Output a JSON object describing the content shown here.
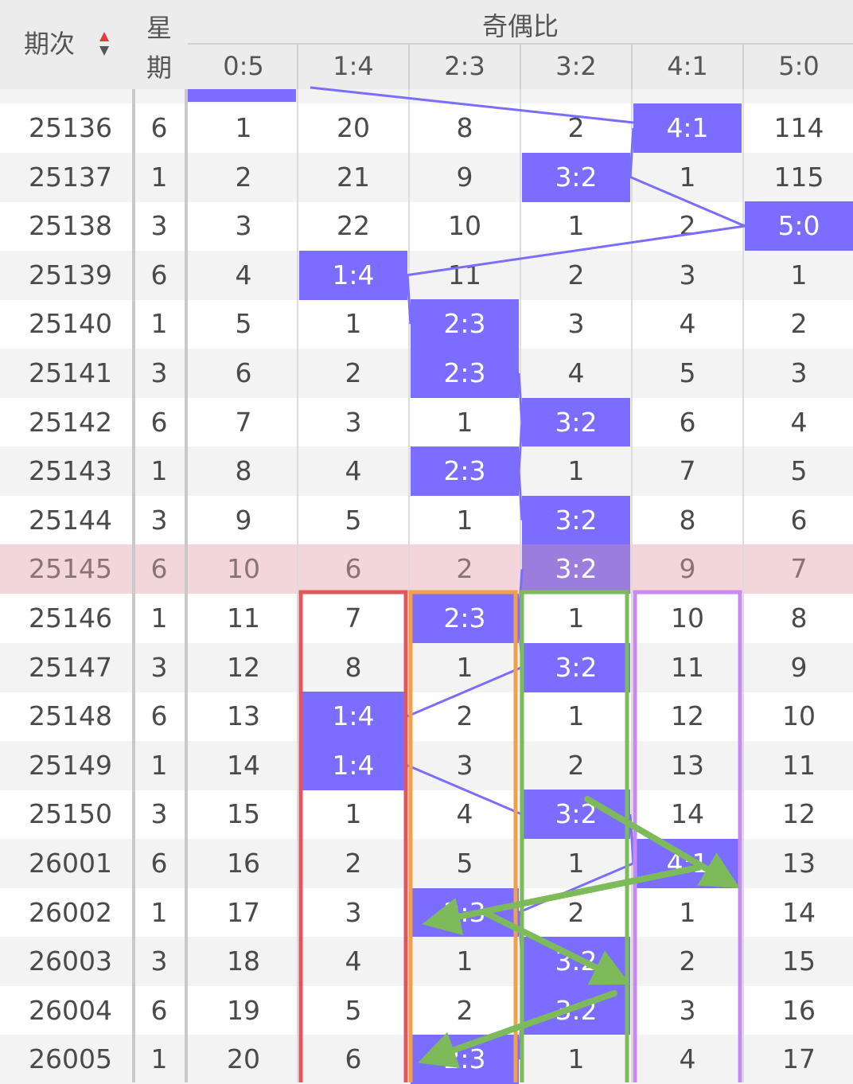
{
  "header": {
    "period_label": "期次",
    "weekday_label_line1": "星",
    "weekday_label_line2": "期",
    "group_label": "奇偶比",
    "columns": [
      "0:5",
      "1:4",
      "2:3",
      "3:2",
      "4:1",
      "5:0"
    ]
  },
  "rows": [
    {
      "period": "25136",
      "weekday": "6",
      "cells": [
        "1",
        "20",
        "8",
        "2",
        "4:1",
        "114"
      ],
      "hit": 4
    },
    {
      "period": "25137",
      "weekday": "1",
      "cells": [
        "2",
        "21",
        "9",
        "3:2",
        "1",
        "115"
      ],
      "hit": 3
    },
    {
      "period": "25138",
      "weekday": "3",
      "cells": [
        "3",
        "22",
        "10",
        "1",
        "2",
        "5:0"
      ],
      "hit": 5
    },
    {
      "period": "25139",
      "weekday": "6",
      "cells": [
        "4",
        "1:4",
        "11",
        "2",
        "3",
        "1"
      ],
      "hit": 1
    },
    {
      "period": "25140",
      "weekday": "1",
      "cells": [
        "5",
        "1",
        "2:3",
        "3",
        "4",
        "2"
      ],
      "hit": 2
    },
    {
      "period": "25141",
      "weekday": "3",
      "cells": [
        "6",
        "2",
        "2:3",
        "4",
        "5",
        "3"
      ],
      "hit": 2
    },
    {
      "period": "25142",
      "weekday": "6",
      "cells": [
        "7",
        "3",
        "1",
        "3:2",
        "6",
        "4"
      ],
      "hit": 3
    },
    {
      "period": "25143",
      "weekday": "1",
      "cells": [
        "8",
        "4",
        "2:3",
        "1",
        "7",
        "5"
      ],
      "hit": 2
    },
    {
      "period": "25144",
      "weekday": "3",
      "cells": [
        "9",
        "5",
        "1",
        "3:2",
        "8",
        "6"
      ],
      "hit": 3
    },
    {
      "period": "25145",
      "weekday": "6",
      "cells": [
        "10",
        "6",
        "2",
        "3:2",
        "9",
        "7"
      ],
      "hit": 3,
      "highlight": true
    },
    {
      "period": "25146",
      "weekday": "1",
      "cells": [
        "11",
        "7",
        "2:3",
        "1",
        "10",
        "8"
      ],
      "hit": 2
    },
    {
      "period": "25147",
      "weekday": "3",
      "cells": [
        "12",
        "8",
        "1",
        "3:2",
        "11",
        "9"
      ],
      "hit": 3
    },
    {
      "period": "25148",
      "weekday": "6",
      "cells": [
        "13",
        "1:4",
        "2",
        "1",
        "12",
        "10"
      ],
      "hit": 1
    },
    {
      "period": "25149",
      "weekday": "1",
      "cells": [
        "14",
        "1:4",
        "3",
        "2",
        "13",
        "11"
      ],
      "hit": 1
    },
    {
      "period": "25150",
      "weekday": "3",
      "cells": [
        "15",
        "1",
        "4",
        "3:2",
        "14",
        "12"
      ],
      "hit": 3
    },
    {
      "period": "26001",
      "weekday": "6",
      "cells": [
        "16",
        "2",
        "5",
        "1",
        "4:1",
        "13"
      ],
      "hit": 4
    },
    {
      "period": "26002",
      "weekday": "1",
      "cells": [
        "17",
        "3",
        "2:3",
        "2",
        "1",
        "14"
      ],
      "hit": 2
    },
    {
      "period": "26003",
      "weekday": "3",
      "cells": [
        "18",
        "4",
        "1",
        "3:2",
        "2",
        "15"
      ],
      "hit": 3
    },
    {
      "period": "26004",
      "weekday": "6",
      "cells": [
        "19",
        "5",
        "2",
        "3:2",
        "3",
        "16"
      ],
      "hit": 3
    },
    {
      "period": "26005",
      "weekday": "1",
      "cells": [
        "20",
        "6",
        "2:3",
        "1",
        "4",
        "17"
      ],
      "hit": 2
    }
  ],
  "colors": {
    "hit": "#7b6dff",
    "highlight_row": "#f2d6d9",
    "box_red": "#e0575b",
    "box_orange": "#f0a04b",
    "box_green": "#7dbb5a",
    "box_purple": "#c98af0",
    "arrow_green": "#7dbb5a",
    "trend_line": "#7b6dff"
  }
}
